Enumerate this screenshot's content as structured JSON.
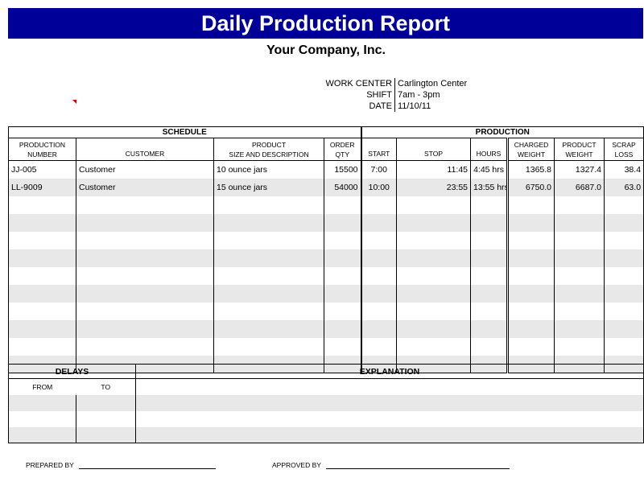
{
  "title": "Daily Production Report",
  "company": "Your Company, Inc.",
  "info": [
    {
      "label": "WORK CENTER",
      "value": "Carlington Center"
    },
    {
      "label": "SHIFT",
      "value": "7am - 3pm"
    },
    {
      "label": "DATE",
      "value": "11/10/11"
    }
  ],
  "sections": {
    "schedule": "SCHEDULE",
    "production": "PRODUCTION"
  },
  "columns": {
    "prod_number": [
      "PRODUCTION",
      "NUMBER"
    ],
    "customer": "CUSTOMER",
    "product": [
      "PRODUCT",
      "SIZE AND DESCRIPTION"
    ],
    "order_qty": [
      "ORDER",
      "QTY"
    ],
    "start": "START",
    "stop": "STOP",
    "hours": "HOURS",
    "charged_weight": [
      "CHARGED",
      "WEIGHT"
    ],
    "product_weight": [
      "PRODUCT",
      "WEIGHT"
    ],
    "scrap_loss": [
      "SCRAP",
      "LOSS"
    ]
  },
  "rows": [
    {
      "prod_number": "JJ-005",
      "customer": "Customer",
      "product": "10 ounce jars",
      "order_qty": "15500",
      "start": "7:00",
      "stop": "11:45",
      "hours": "4:45 hrs",
      "charged_weight": "1365.8",
      "product_weight": "1327.4",
      "scrap_loss": "38.4"
    },
    {
      "prod_number": "LL-9009",
      "customer": "Customer",
      "product": "15 ounce jars",
      "order_qty": "54000",
      "start": "10:00",
      "stop": "23:55",
      "hours": "13:55 hrs",
      "charged_weight": "6750.0",
      "product_weight": "6687.0",
      "scrap_loss": "63.0"
    }
  ],
  "delays": {
    "header": "DELAYS",
    "from": "FROM",
    "to": "TO",
    "explanation": "EXPLANATION"
  },
  "signatures": {
    "prepared_by": "PREPARED BY",
    "approved_by": "APPROVED BY"
  },
  "colors": {
    "title_bg": "#000099",
    "stripe": "#e8e8e8"
  }
}
